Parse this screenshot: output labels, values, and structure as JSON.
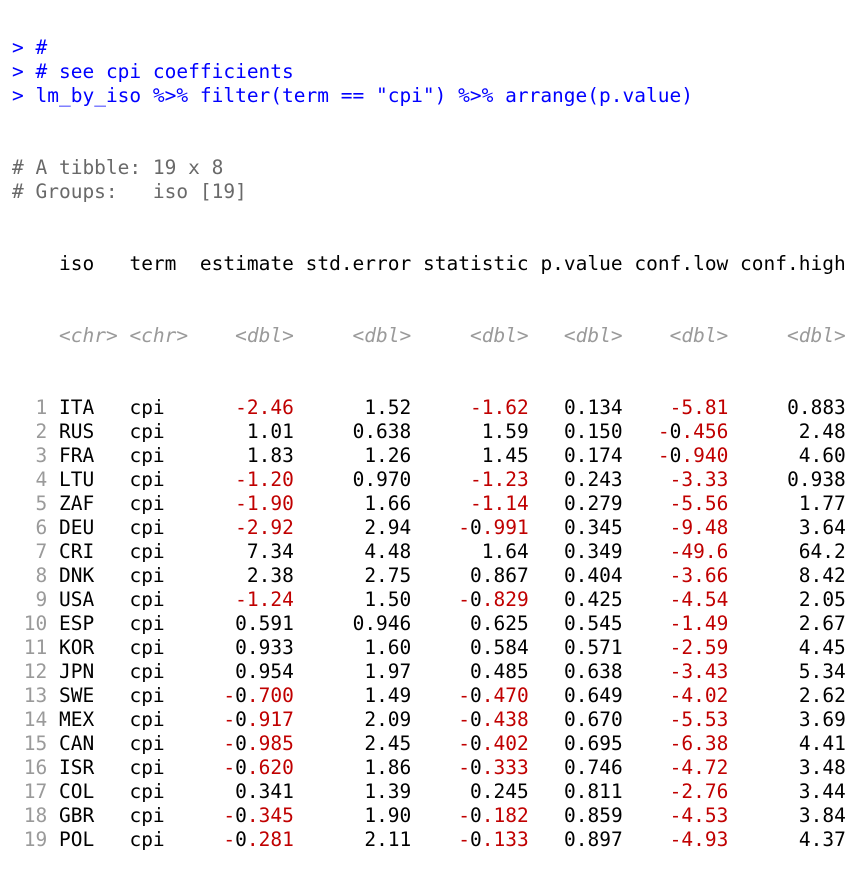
{
  "console": {
    "prompt": ">",
    "lines": [
      {
        "kind": "cmd",
        "text": "#"
      },
      {
        "kind": "cmd",
        "text": "# see cpi coefficients"
      },
      {
        "kind": "cmd",
        "text": "lm_by_iso %>% filter(term == \"cpi\") %>% arrange(p.value)"
      }
    ],
    "comments": [
      "# A tibble: 19 x 8",
      "# Groups:   iso [19]"
    ]
  },
  "table": {
    "columns": [
      {
        "name": "iso",
        "type": "<chr>",
        "width": 5,
        "align": "left"
      },
      {
        "name": "term",
        "type": "<chr>",
        "width": 5,
        "align": "left"
      },
      {
        "name": "estimate",
        "type": "<dbl>",
        "width": 8,
        "align": "right"
      },
      {
        "name": "std.error",
        "type": "<dbl>",
        "width": 9,
        "align": "right"
      },
      {
        "name": "statistic",
        "type": "<dbl>",
        "width": 9,
        "align": "right"
      },
      {
        "name": "p.value",
        "type": "<dbl>",
        "width": 7,
        "align": "right"
      },
      {
        "name": "conf.low",
        "type": "<dbl>",
        "width": 8,
        "align": "right"
      },
      {
        "name": "conf.high",
        "type": "<dbl>",
        "width": 9,
        "align": "right"
      }
    ],
    "rows": [
      [
        "ITA",
        "cpi",
        "-2.46",
        "1.52",
        "-1.62",
        "0.134",
        "-5.81",
        "0.883"
      ],
      [
        "RUS",
        "cpi",
        "1.01",
        "0.638",
        "1.59",
        "0.150",
        "-0.456",
        "2.48"
      ],
      [
        "FRA",
        "cpi",
        "1.83",
        "1.26",
        "1.45",
        "0.174",
        "-0.940",
        "4.60"
      ],
      [
        "LTU",
        "cpi",
        "-1.20",
        "0.970",
        "-1.23",
        "0.243",
        "-3.33",
        "0.938"
      ],
      [
        "ZAF",
        "cpi",
        "-1.90",
        "1.66",
        "-1.14",
        "0.279",
        "-5.56",
        "1.77"
      ],
      [
        "DEU",
        "cpi",
        "-2.92",
        "2.94",
        "-0.991",
        "0.345",
        "-9.48",
        "3.64"
      ],
      [
        "CRI",
        "cpi",
        "7.34",
        "4.48",
        "1.64",
        "0.349",
        "-49.6",
        "64.2"
      ],
      [
        "DNK",
        "cpi",
        "2.38",
        "2.75",
        "0.867",
        "0.404",
        "-3.66",
        "8.42"
      ],
      [
        "USA",
        "cpi",
        "-1.24",
        "1.50",
        "-0.829",
        "0.425",
        "-4.54",
        "2.05"
      ],
      [
        "ESP",
        "cpi",
        "0.591",
        "0.946",
        "0.625",
        "0.545",
        "-1.49",
        "2.67"
      ],
      [
        "KOR",
        "cpi",
        "0.933",
        "1.60",
        "0.584",
        "0.571",
        "-2.59",
        "4.45"
      ],
      [
        "JPN",
        "cpi",
        "0.954",
        "1.97",
        "0.485",
        "0.638",
        "-3.43",
        "5.34"
      ],
      [
        "SWE",
        "cpi",
        "-0.700",
        "1.49",
        "-0.470",
        "0.649",
        "-4.02",
        "2.62"
      ],
      [
        "MEX",
        "cpi",
        "-0.917",
        "2.09",
        "-0.438",
        "0.670",
        "-5.53",
        "3.69"
      ],
      [
        "CAN",
        "cpi",
        "-0.985",
        "2.45",
        "-0.402",
        "0.695",
        "-6.38",
        "4.41"
      ],
      [
        "ISR",
        "cpi",
        "-0.620",
        "1.86",
        "-0.333",
        "0.746",
        "-4.72",
        "3.48"
      ],
      [
        "COL",
        "cpi",
        "0.341",
        "1.39",
        "0.245",
        "0.811",
        "-2.76",
        "3.44"
      ],
      [
        "GBR",
        "cpi",
        "-0.345",
        "1.90",
        "-0.182",
        "0.859",
        "-4.53",
        "3.84"
      ],
      [
        "POL",
        "cpi",
        "-0.281",
        "2.11",
        "-0.133",
        "0.897",
        "-4.93",
        "4.37"
      ]
    ]
  },
  "colors": {
    "command": "#0000ff",
    "comment": "#696969",
    "negative": "#c00000",
    "muted": "#9a9a9a"
  }
}
